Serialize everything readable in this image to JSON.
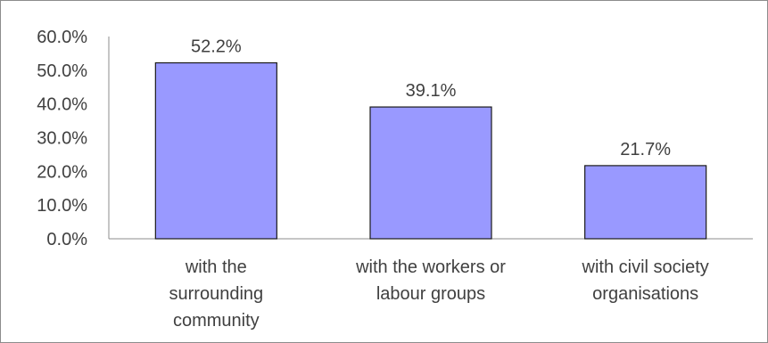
{
  "chart_data": {
    "type": "bar",
    "categories": [
      [
        "with the",
        "surrounding",
        "community"
      ],
      [
        "with the workers or",
        "labour groups"
      ],
      [
        "with civil society",
        "organisations"
      ]
    ],
    "values": [
      52.2,
      39.1,
      21.7
    ],
    "data_labels": [
      "52.2%",
      "39.1%",
      "21.7%"
    ],
    "ylim": [
      0,
      60
    ],
    "yticks": [
      "0.0%",
      "10.0%",
      "20.0%",
      "30.0%",
      "40.0%",
      "50.0%",
      "60.0%"
    ],
    "bar_color": "#9999ff",
    "bar_edge_color": "#1a1a1a",
    "grid": false,
    "legend": "none"
  }
}
